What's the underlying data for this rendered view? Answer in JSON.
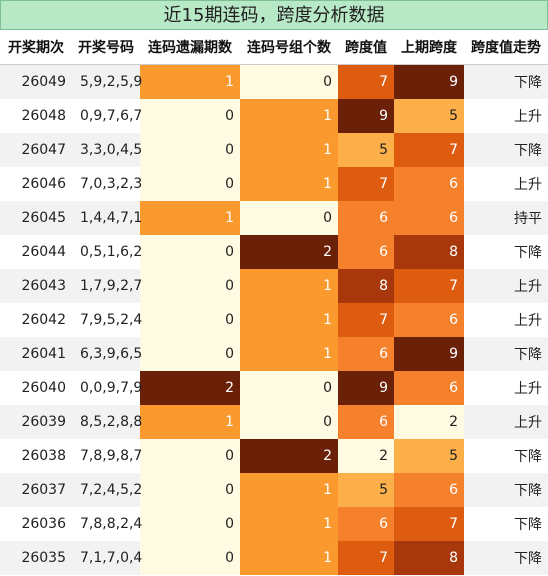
{
  "title": "近15期连码，跨度分析数据",
  "headers": [
    "开奖期次",
    "开奖号码",
    "连码遗漏期数",
    "连码号组个数",
    "跨度值",
    "上期跨度",
    "跨度值走势"
  ],
  "palette": {
    "0": "#fffbe3",
    "1": "#fa9a2e",
    "2": "#6b2108",
    "span": {
      "2": "#fffbe3",
      "5": "#fdb04a",
      "6": "#f5812d",
      "7": "#dd5c0f",
      "8": "#a8380b",
      "9": "#6b2108"
    }
  },
  "rows": [
    {
      "period": "26049",
      "numbers": "5,9,2,5,9",
      "miss": 1,
      "groups": 0,
      "span": 7,
      "prev_span": 9,
      "trend": "下降"
    },
    {
      "period": "26048",
      "numbers": "0,9,7,6,7",
      "miss": 0,
      "groups": 1,
      "span": 9,
      "prev_span": 5,
      "trend": "上升"
    },
    {
      "period": "26047",
      "numbers": "3,3,0,4,5",
      "miss": 0,
      "groups": 1,
      "span": 5,
      "prev_span": 7,
      "trend": "下降"
    },
    {
      "period": "26046",
      "numbers": "7,0,3,2,3",
      "miss": 0,
      "groups": 1,
      "span": 7,
      "prev_span": 6,
      "trend": "上升"
    },
    {
      "period": "26045",
      "numbers": "1,4,4,7,1",
      "miss": 1,
      "groups": 0,
      "span": 6,
      "prev_span": 6,
      "trend": "持平"
    },
    {
      "period": "26044",
      "numbers": "0,5,1,6,2",
      "miss": 0,
      "groups": 2,
      "span": 6,
      "prev_span": 8,
      "trend": "下降"
    },
    {
      "period": "26043",
      "numbers": "1,7,9,2,7",
      "miss": 0,
      "groups": 1,
      "span": 8,
      "prev_span": 7,
      "trend": "上升"
    },
    {
      "period": "26042",
      "numbers": "7,9,5,2,4",
      "miss": 0,
      "groups": 1,
      "span": 7,
      "prev_span": 6,
      "trend": "上升"
    },
    {
      "period": "26041",
      "numbers": "6,3,9,6,5",
      "miss": 0,
      "groups": 1,
      "span": 6,
      "prev_span": 9,
      "trend": "下降"
    },
    {
      "period": "26040",
      "numbers": "0,0,9,7,9",
      "miss": 2,
      "groups": 0,
      "span": 9,
      "prev_span": 6,
      "trend": "上升"
    },
    {
      "period": "26039",
      "numbers": "8,5,2,8,8",
      "miss": 1,
      "groups": 0,
      "span": 6,
      "prev_span": 2,
      "trend": "上升"
    },
    {
      "period": "26038",
      "numbers": "7,8,9,8,7",
      "miss": 0,
      "groups": 2,
      "span": 2,
      "prev_span": 5,
      "trend": "下降"
    },
    {
      "period": "26037",
      "numbers": "7,2,4,5,2",
      "miss": 0,
      "groups": 1,
      "span": 5,
      "prev_span": 6,
      "trend": "下降"
    },
    {
      "period": "26036",
      "numbers": "7,8,8,2,4",
      "miss": 0,
      "groups": 1,
      "span": 6,
      "prev_span": 7,
      "trend": "下降"
    },
    {
      "period": "26035",
      "numbers": "7,1,7,0,4",
      "miss": 0,
      "groups": 1,
      "span": 7,
      "prev_span": 8,
      "trend": "下降"
    }
  ]
}
